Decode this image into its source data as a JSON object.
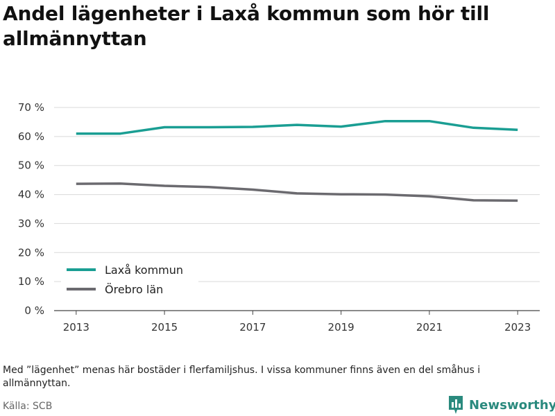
{
  "title": "Andel lägenheter i Laxå kommun som hör till allmännyttan",
  "note": "Med ”lägenhet” menas här bostäder i flerfamiljshus. I vissa kommuner finns även en del småhus i allmännyttan.",
  "source": "Källa: SCB",
  "brand": "Newsworthy",
  "colors": {
    "laxa": "#1a9e93",
    "orebro": "#6b6a6f",
    "grid": "#d9d9d9",
    "brand": "#2a8a7e"
  },
  "chart_data": {
    "type": "line",
    "x": [
      2013,
      2014,
      2015,
      2016,
      2017,
      2018,
      2019,
      2020,
      2021,
      2022,
      2023
    ],
    "x_ticks": [
      "2013",
      "2015",
      "2017",
      "2019",
      "2021",
      "2023"
    ],
    "y_ticks": [
      "0 %",
      "10 %",
      "20 %",
      "30 %",
      "40 %",
      "50 %",
      "60 %",
      "70 %"
    ],
    "ylim": [
      0,
      70
    ],
    "xlim": [
      2012.5,
      2023.5
    ],
    "grid": true,
    "legend_position": "bottom-left",
    "series": [
      {
        "name": "Laxå kommun",
        "color": "#1a9e93",
        "values": [
          61.0,
          61.0,
          63.2,
          63.2,
          63.3,
          64.0,
          63.4,
          65.3,
          65.3,
          63.0,
          62.3
        ]
      },
      {
        "name": "Örebro län",
        "color": "#6b6a6f",
        "values": [
          43.7,
          43.8,
          43.0,
          42.6,
          41.7,
          40.4,
          40.1,
          40.0,
          39.4,
          38.0,
          37.9
        ]
      }
    ]
  }
}
